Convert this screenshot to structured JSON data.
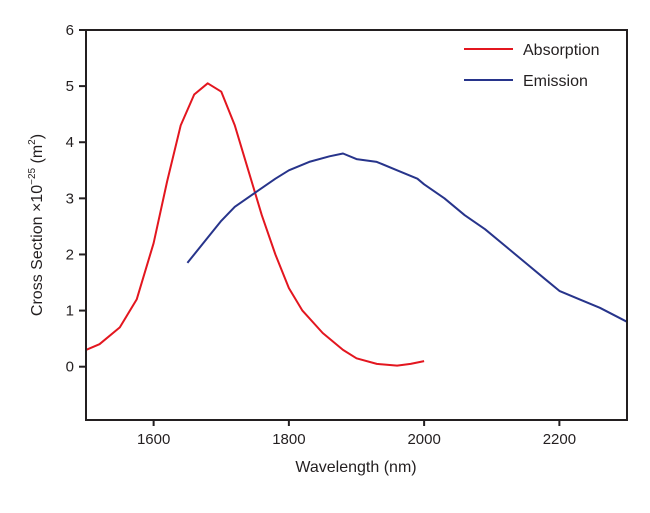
{
  "chart_data": {
    "type": "line",
    "xlabel": "Wavelength (nm)",
    "ylabel_main": "Cross Section ×10",
    "ylabel_exp": "−25",
    "ylabel_unit": " (m",
    "ylabel_unit_exp": "2",
    "ylabel_close": ")",
    "xlim": [
      1500,
      2300
    ],
    "ylim": [
      -0.95,
      6
    ],
    "xticks": [
      1600,
      1800,
      2000,
      2200
    ],
    "yticks": [
      0,
      1,
      2,
      3,
      4,
      5,
      6
    ],
    "grid": false,
    "legend_position": "top-right",
    "series": [
      {
        "name": "Absorption",
        "color": "#e3161f",
        "x": [
          1500,
          1520,
          1550,
          1575,
          1600,
          1620,
          1640,
          1660,
          1680,
          1700,
          1720,
          1740,
          1760,
          1780,
          1800,
          1820,
          1850,
          1880,
          1900,
          1930,
          1960,
          1980,
          2000
        ],
        "y": [
          0.3,
          0.4,
          0.7,
          1.2,
          2.2,
          3.3,
          4.3,
          4.85,
          5.05,
          4.9,
          4.3,
          3.5,
          2.7,
          2.0,
          1.4,
          1.0,
          0.6,
          0.3,
          0.15,
          0.05,
          0.02,
          0.05,
          0.1
        ]
      },
      {
        "name": "Emission",
        "color": "#27348b",
        "x": [
          1650,
          1680,
          1700,
          1720,
          1750,
          1780,
          1800,
          1830,
          1860,
          1880,
          1900,
          1930,
          1960,
          1990,
          2000,
          2030,
          2060,
          2090,
          2120,
          2150,
          2180,
          2200,
          2230,
          2260,
          2300
        ],
        "y": [
          1.85,
          2.3,
          2.6,
          2.85,
          3.1,
          3.35,
          3.5,
          3.65,
          3.75,
          3.8,
          3.7,
          3.65,
          3.5,
          3.35,
          3.25,
          3.0,
          2.7,
          2.45,
          2.15,
          1.85,
          1.55,
          1.35,
          1.2,
          1.05,
          0.8
        ]
      }
    ]
  }
}
